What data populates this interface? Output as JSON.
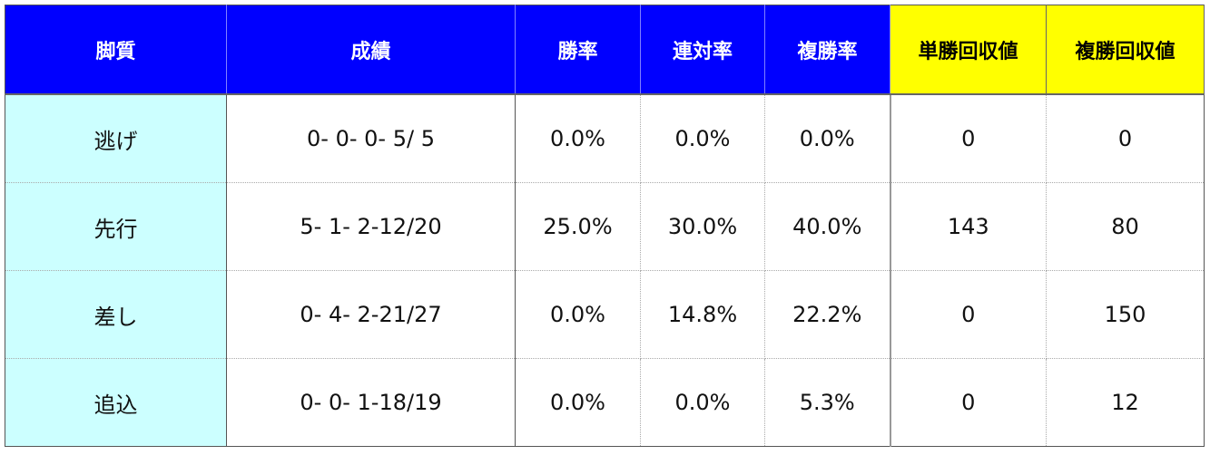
{
  "colors": {
    "header_blue": "#0000ff",
    "header_yellow": "#ffff00",
    "first_col": "#ccffff"
  },
  "headers": [
    "脚質",
    "成績",
    "勝率",
    "連対率",
    "複勝率",
    "単勝回収値",
    "複勝回収値"
  ],
  "rows": [
    [
      "逃げ",
      "0- 0- 0- 5/ 5",
      "0.0%",
      "0.0%",
      "0.0%",
      "0",
      "0"
    ],
    [
      "先行",
      "5- 1- 2-12/20",
      "25.0%",
      "30.0%",
      "40.0%",
      "143",
      "80"
    ],
    [
      "差し",
      "0- 4- 2-21/27",
      "0.0%",
      "14.8%",
      "22.2%",
      "0",
      "150"
    ],
    [
      "追込",
      "0- 0- 1-18/19",
      "0.0%",
      "0.0%",
      "5.3%",
      "0",
      "12"
    ]
  ]
}
